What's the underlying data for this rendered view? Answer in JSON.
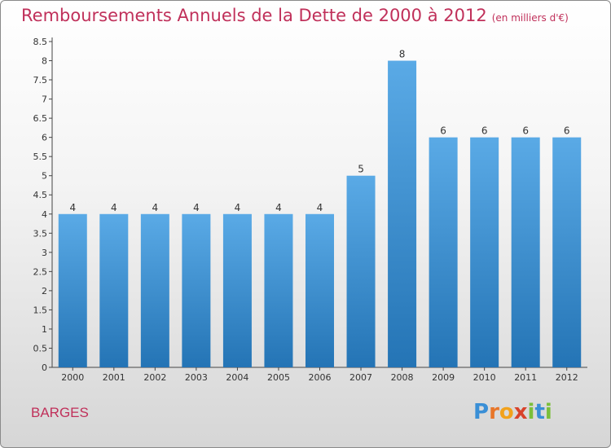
{
  "title": "Remboursements Annuels de la Dette de 2000 à 2012",
  "unit": "(en milliers d'€)",
  "commune": "BARGES",
  "brand": {
    "letters": [
      "P",
      "r",
      "o",
      "x",
      "i",
      "t",
      "i"
    ],
    "colors": [
      "#3a8fd6",
      "#e8762a",
      "#f2a21c",
      "#d8432b",
      "#7bbf3a",
      "#3a8fd6",
      "#7bbf3a"
    ]
  },
  "colors": {
    "bar": "#3d95d8",
    "title": "#c0305a"
  },
  "chart_data": {
    "type": "bar",
    "categories": [
      "2000",
      "2001",
      "2002",
      "2003",
      "2004",
      "2005",
      "2006",
      "2007",
      "2008",
      "2009",
      "2010",
      "2011",
      "2012"
    ],
    "values": [
      4,
      4,
      4,
      4,
      4,
      4,
      4,
      5,
      8,
      6,
      6,
      6,
      6
    ],
    "data_labels": [
      "4",
      "4",
      "4",
      "4",
      "4",
      "4",
      "4",
      "5",
      "8",
      "6",
      "6",
      "6",
      "6"
    ],
    "yticks": [
      "0",
      "0.5",
      "1",
      "1.5",
      "2",
      "2.5",
      "3",
      "3.5",
      "4",
      "4.5",
      "5",
      "5.5",
      "6",
      "6.5",
      "7",
      "7.5",
      "8",
      "8.5"
    ],
    "ylim": [
      0,
      8.5
    ],
    "grid": false
  }
}
